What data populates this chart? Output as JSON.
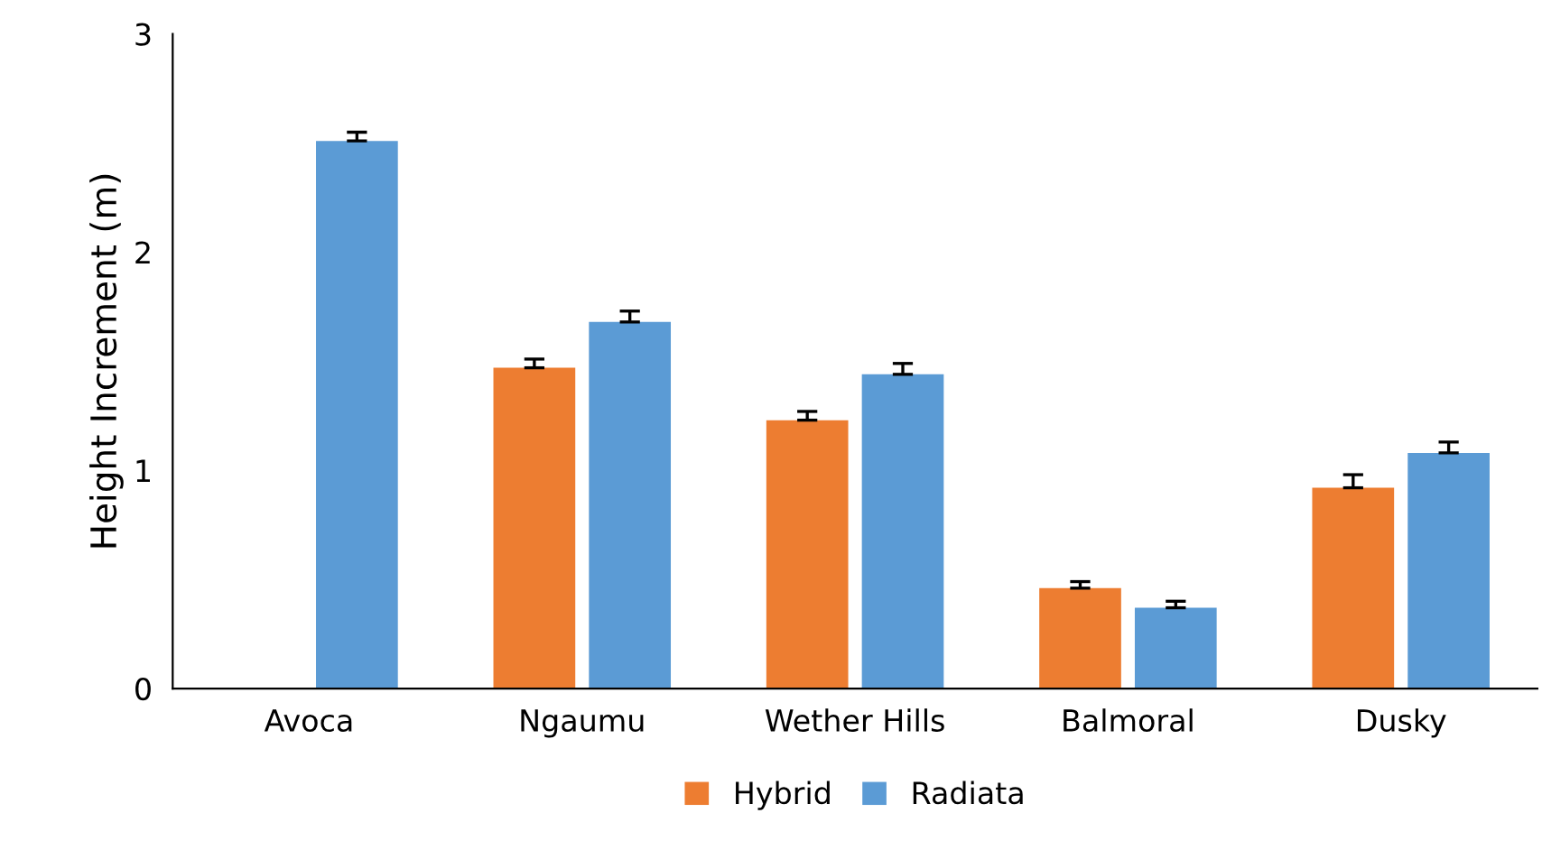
{
  "chart_data": {
    "type": "bar",
    "ylabel": "Height Increment (m)",
    "categories": [
      "Avoca",
      "Ngaumu",
      "Wether Hills",
      "Balmoral",
      "Dusky"
    ],
    "series": [
      {
        "name": "Hybrid",
        "color": "#ed7d31",
        "values": [
          null,
          1.47,
          1.23,
          0.46,
          0.92
        ],
        "errors": [
          null,
          [
            1.47,
            1.51
          ],
          [
            1.23,
            1.27
          ],
          [
            0.46,
            0.49
          ],
          [
            0.92,
            0.98
          ]
        ]
      },
      {
        "name": "Radiata",
        "color": "#5b9bd5",
        "values": [
          2.51,
          1.68,
          1.44,
          0.37,
          1.08
        ],
        "errors": [
          [
            2.51,
            2.55
          ],
          [
            1.68,
            1.73
          ],
          [
            1.44,
            1.49
          ],
          [
            0.37,
            0.4
          ],
          [
            1.08,
            1.13
          ]
        ]
      }
    ],
    "ylim": [
      0,
      3
    ],
    "yticks": [
      0,
      1,
      2,
      3
    ],
    "grid": false,
    "legend": "bottom"
  }
}
